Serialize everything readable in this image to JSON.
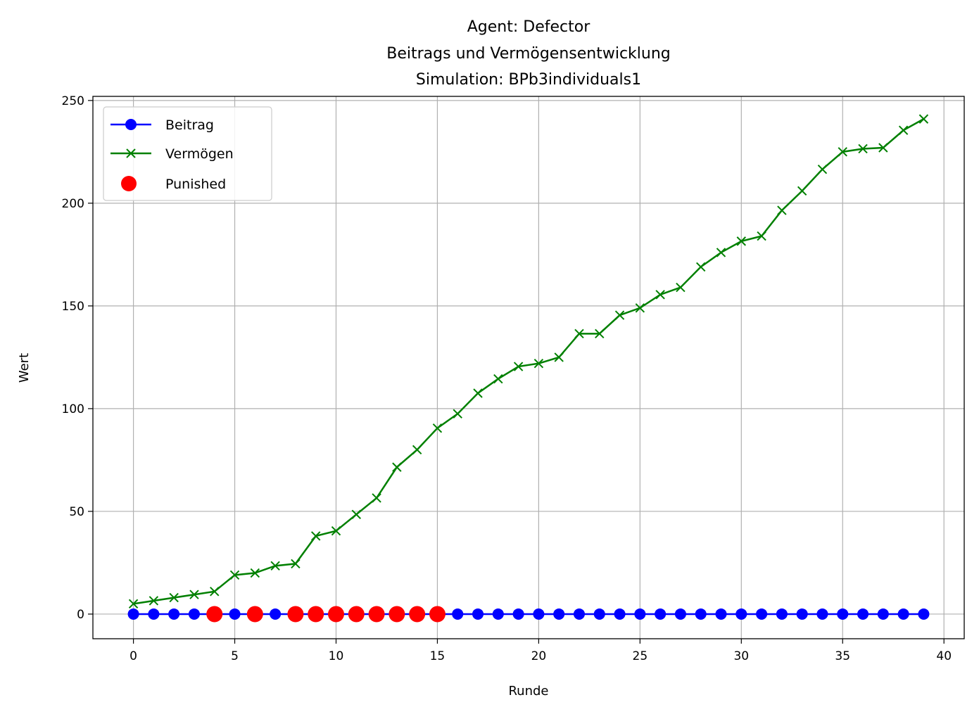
{
  "chart_data": {
    "type": "line",
    "title_lines": [
      "Agent: Defector",
      "Beitrags und Vermögensentwicklung",
      "Simulation: BPb3individuals1"
    ],
    "xlabel": "Runde",
    "ylabel": "Wert",
    "xlim": [
      -2,
      41
    ],
    "ylim": [
      -12,
      252
    ],
    "xticks": [
      0,
      5,
      10,
      15,
      20,
      25,
      30,
      35,
      40
    ],
    "yticks": [
      0,
      50,
      100,
      150,
      200,
      250
    ],
    "grid": true,
    "legend_position": "top-left",
    "x": [
      0,
      1,
      2,
      3,
      4,
      5,
      6,
      7,
      8,
      9,
      10,
      11,
      12,
      13,
      14,
      15,
      16,
      17,
      18,
      19,
      20,
      21,
      22,
      23,
      24,
      25,
      26,
      27,
      28,
      29,
      30,
      31,
      32,
      33,
      34,
      35,
      36,
      37,
      38,
      39
    ],
    "series": [
      {
        "name": "Beitrag",
        "color": "#0000ff",
        "marker": "circle",
        "values": [
          0,
          0,
          0,
          0,
          0,
          0,
          0,
          0,
          0,
          0,
          0,
          0,
          0,
          0,
          0,
          0,
          0,
          0,
          0,
          0,
          0,
          0,
          0,
          0,
          0,
          0,
          0,
          0,
          0,
          0,
          0,
          0,
          0,
          0,
          0,
          0,
          0,
          0,
          0,
          0
        ]
      },
      {
        "name": "Vermögen",
        "color": "#008000",
        "marker": "x",
        "values": [
          5,
          6.5,
          8,
          9.5,
          11,
          19,
          20,
          23.5,
          24.5,
          38,
          40.5,
          48.5,
          56.5,
          71.5,
          80,
          90.5,
          97.5,
          107.5,
          114.5,
          120.5,
          122,
          125,
          136.5,
          136.5,
          145.5,
          149,
          155.5,
          159,
          169,
          176,
          181.5,
          184,
          196.5,
          206,
          216.5,
          225,
          226.5,
          227,
          235.5,
          241
        ]
      },
      {
        "name": "Punished",
        "color": "#ff0000",
        "marker": "circle-large",
        "type": "scatter",
        "x": [
          4,
          6,
          8,
          9,
          10,
          11,
          12,
          13,
          14,
          15
        ],
        "values": [
          0,
          0,
          0,
          0,
          0,
          0,
          0,
          0,
          0,
          0
        ]
      }
    ]
  }
}
